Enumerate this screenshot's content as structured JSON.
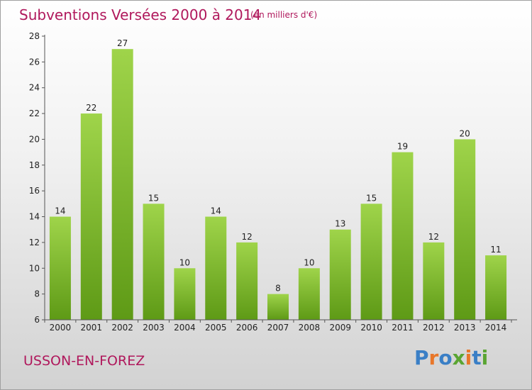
{
  "header": {
    "title": "Subventions Versées 2000 à 2014",
    "subtitle": "(en milliers d'€)"
  },
  "footer": {
    "commune": "USSON-EN-FOREZ",
    "logo_text": "Proxiti"
  },
  "colors": {
    "accent": "#b0185c",
    "bar_top": "#9fd44a",
    "bar_bottom": "#5e9a16",
    "logo_letters": [
      "#3a7fc6",
      "#e8772a",
      "#3a7fc6",
      "#5aa532",
      "#e8772a",
      "#3a7fc6",
      "#5aa532"
    ]
  },
  "chart_data": {
    "type": "bar",
    "categories": [
      "2000",
      "2001",
      "2002",
      "2003",
      "2004",
      "2005",
      "2006",
      "2007",
      "2008",
      "2009",
      "2010",
      "2011",
      "2012",
      "2013",
      "2014"
    ],
    "values": [
      14,
      22,
      27,
      15,
      10,
      14,
      12,
      8,
      10,
      13,
      15,
      19,
      12,
      20,
      11
    ],
    "data_labels": [
      "14",
      "22",
      "27",
      "15",
      "10",
      "14",
      "12",
      "8",
      "10",
      "13",
      "15",
      "19",
      "12",
      "20",
      "11"
    ],
    "yticks": [
      "6",
      "8",
      "10",
      "12",
      "14",
      "16",
      "18",
      "20",
      "22",
      "24",
      "26",
      "28"
    ],
    "ylim": [
      6,
      28
    ],
    "grid": false,
    "legend": "none"
  }
}
